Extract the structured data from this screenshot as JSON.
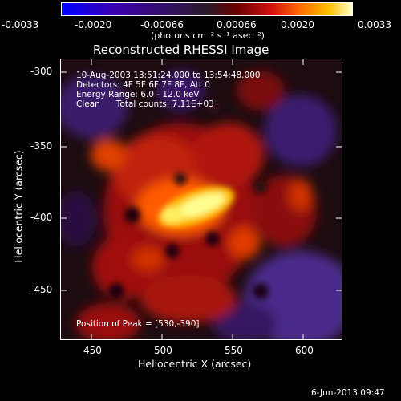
{
  "colorbar": {
    "ticks": [
      "-0.0033",
      "-0.0020",
      "-0.00066",
      "0.00066",
      "0.0020",
      "0.0033"
    ],
    "units": "(photons cm⁻² s⁻¹ asec⁻²)"
  },
  "plot": {
    "title": "Reconstructed RHESSI Image",
    "annotation_lines": [
      "10-Aug-2003 13:51:24.000 to 13:54:48.000",
      "Detectors: 4F 5F 6F 7F 8F, Att 0",
      "Energy Range: 6.0 - 12.0 keV",
      "Clean      Total counts: 7.11E+03"
    ],
    "peak_label": "Position of Peak = [530,-390]",
    "xlabel": "Heliocentric X (arcsec)",
    "ylabel": "Heliocentric Y (arcsec)",
    "x_ticks": [
      "450",
      "500",
      "550",
      "600"
    ],
    "y_ticks": [
      "-300",
      "-350",
      "-400",
      "-450"
    ]
  },
  "footer": {
    "timestamp": "6-Jun-2013 09:47"
  }
}
